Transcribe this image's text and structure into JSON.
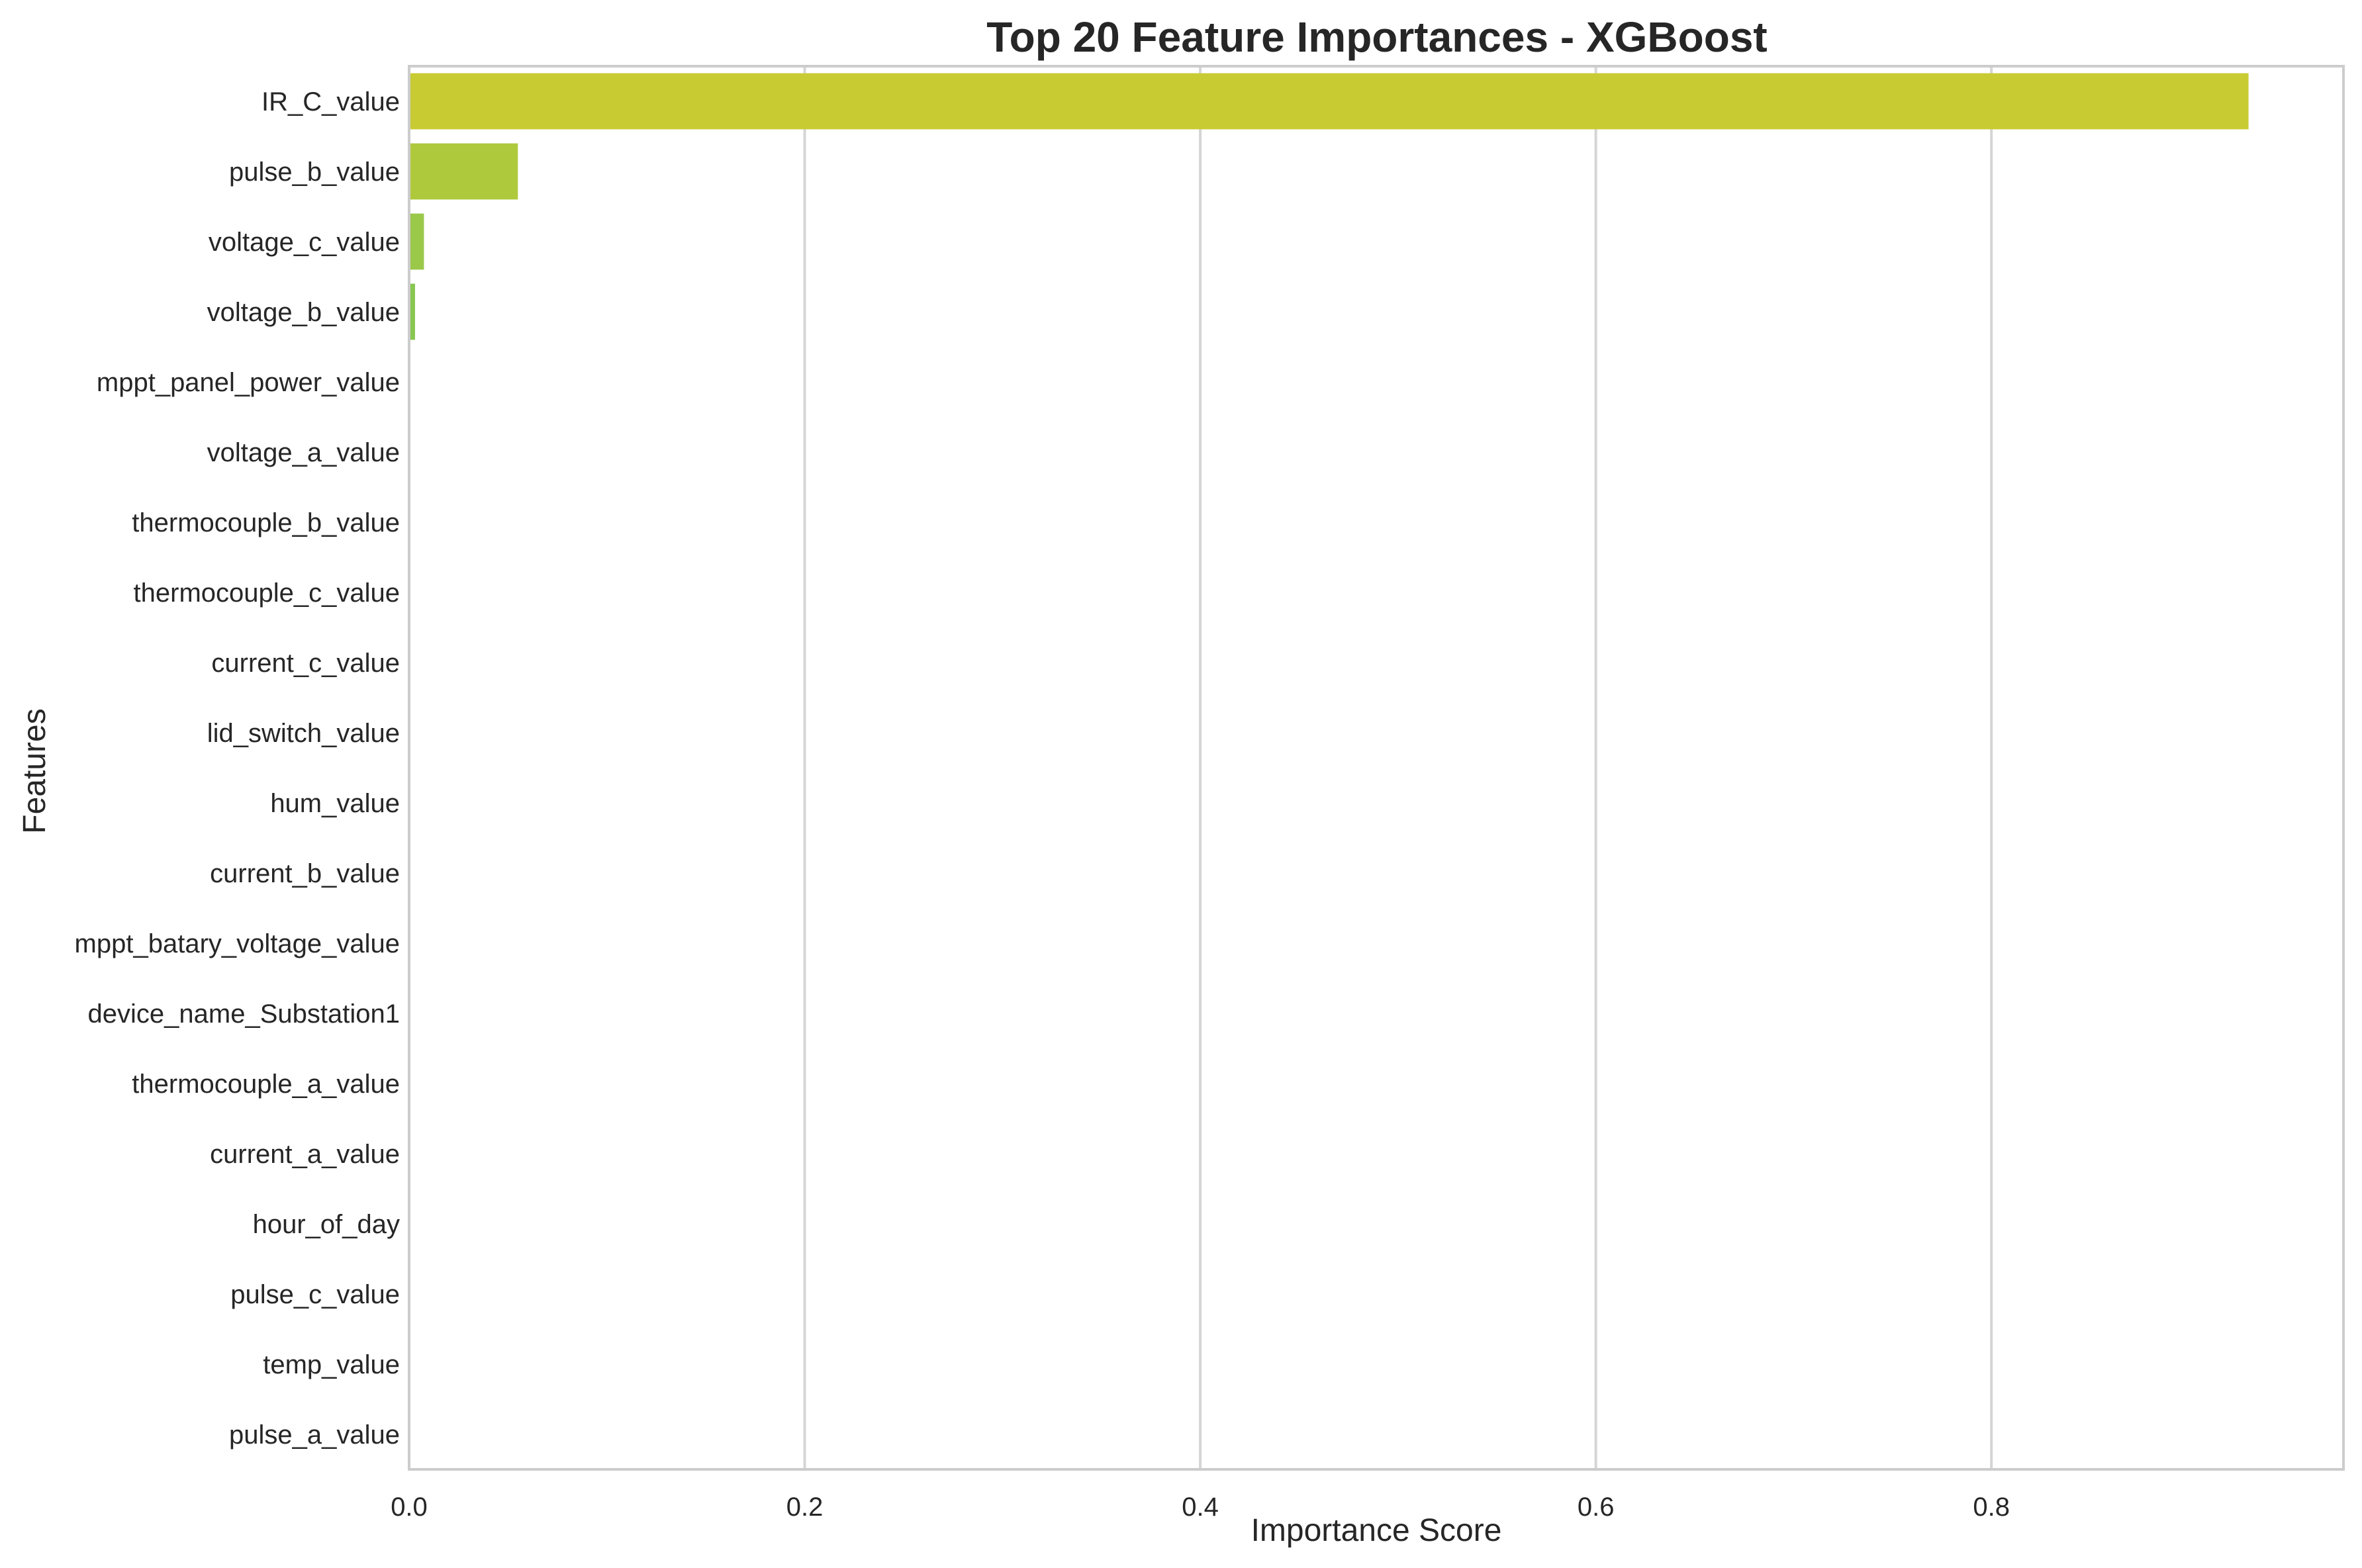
{
  "chart_data": {
    "type": "bar",
    "orientation": "horizontal",
    "title": "Top 20 Feature Importances - XGBoost",
    "xlabel": "Importance Score",
    "ylabel": "Features",
    "xlim": [
      0,
      0.978
    ],
    "xticks": [
      0.0,
      0.2,
      0.4,
      0.6,
      0.8
    ],
    "xtick_labels": [
      "0.0",
      "0.2",
      "0.4",
      "0.6",
      "0.8"
    ],
    "grid": "vertical lines on x ticks",
    "categories": [
      "IR_C_value",
      "pulse_b_value",
      "voltage_c_value",
      "voltage_b_value",
      "mppt_panel_power_value",
      "voltage_a_value",
      "thermocouple_b_value",
      "thermocouple_c_value",
      "current_c_value",
      "lid_switch_value",
      "hum_value",
      "current_b_value",
      "mppt_batary_voltage_value",
      "device_name_Substation1",
      "thermocouple_a_value",
      "current_a_value",
      "hour_of_day",
      "pulse_c_value",
      "temp_value",
      "pulse_a_value"
    ],
    "values": [
      0.93,
      0.055,
      0.0075,
      0.003,
      0.0004,
      0.0003,
      0.0002,
      0.0002,
      0.0001,
      0.0001,
      0.0001,
      0.0001,
      0.0001,
      0.0001,
      0.0001,
      0.0,
      0.0,
      0.0,
      0.0,
      0.0
    ],
    "colors": [
      "#c9cb33",
      "#aec93c",
      "#9ac94a",
      "#88c652",
      "#7dc35a",
      "#72c063",
      "#67bd6b",
      "#5db972",
      "#52b67a",
      "#48b280",
      "#3fae86",
      "#37aa8b",
      "#30a68f",
      "#2ba193",
      "#289d96",
      "#269898",
      "#26939a",
      "#278f9b",
      "#288a9c",
      "#2a859c"
    ]
  }
}
